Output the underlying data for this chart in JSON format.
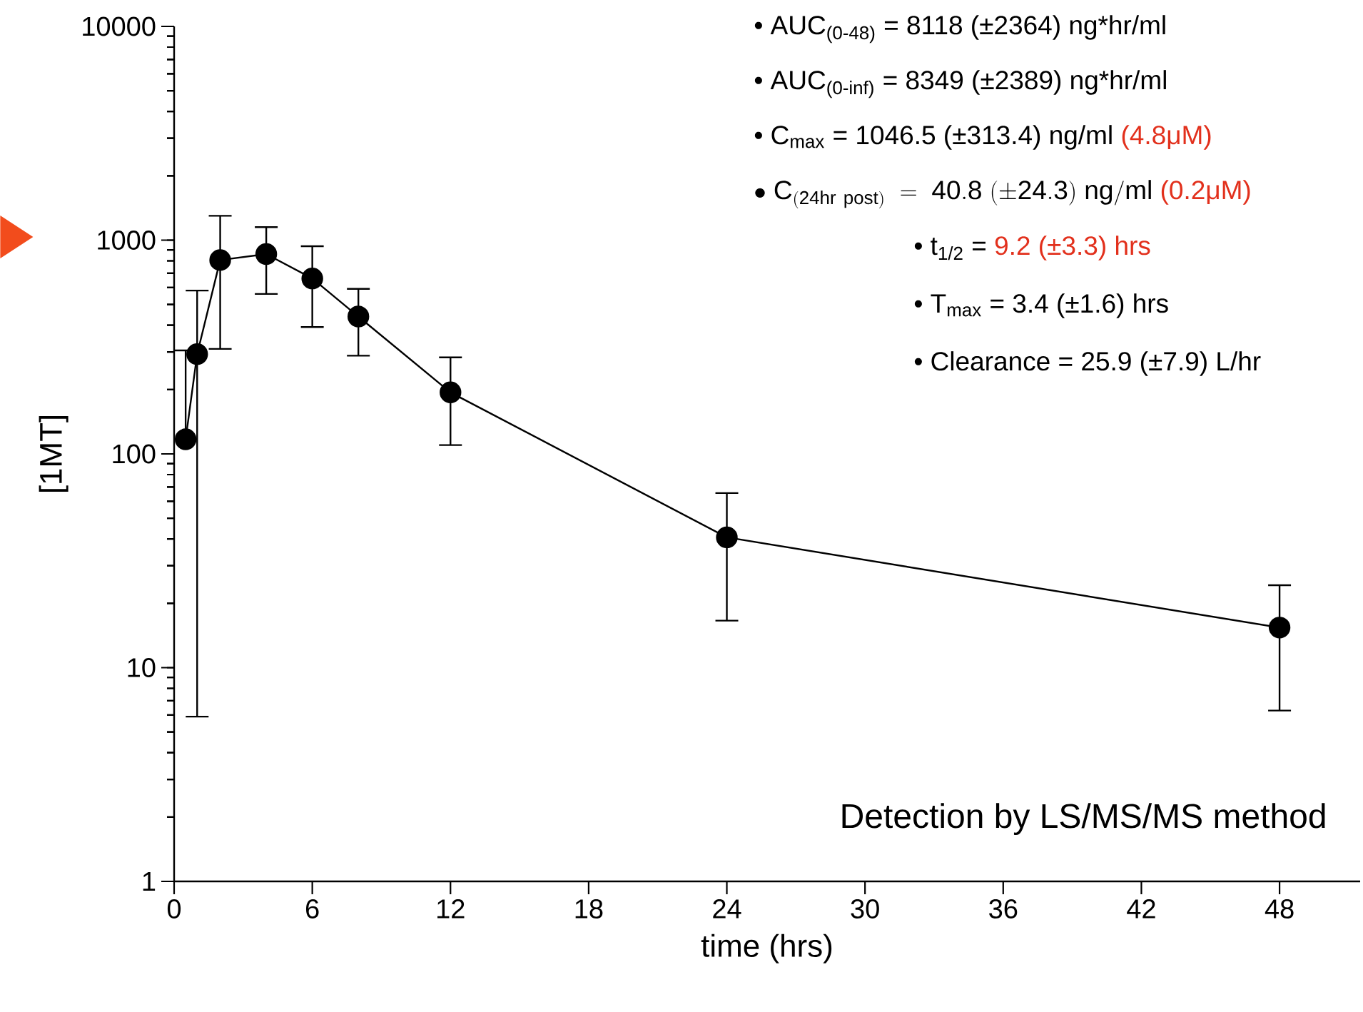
{
  "chart_data": {
    "type": "line",
    "color": "#000000",
    "marker": "circle",
    "line_style": "solid",
    "log": "y",
    "x": [
      0.5,
      1,
      2,
      4,
      6,
      8,
      12,
      24,
      48
    ],
    "values": [
      117,
      293,
      807,
      861,
      662,
      439,
      194,
      40.7,
      15.4
    ],
    "errors": [
      [
        117,
        305
      ],
      [
        5.9,
        581
      ],
      [
        310,
        1300
      ],
      [
        560,
        1150
      ],
      [
        392,
        937
      ],
      [
        288,
        592
      ],
      [
        110,
        283
      ],
      [
        16.6,
        65.6
      ],
      [
        6.3,
        24.3
      ]
    ],
    "xlim": [
      0,
      51.5
    ],
    "ylim": [
      1,
      10000
    ],
    "xticks": [
      0,
      6,
      12,
      18,
      24,
      30,
      36,
      42,
      48
    ],
    "yticks": [
      1,
      10,
      100,
      1000,
      10000
    ],
    "xlabel": "time (hrs)",
    "ylabel": "[1MT]",
    "annotations": [
      "• AUC$_{(0-48)}$ = 8118 (±2364) ng*hr/ml",
      "• AUC$_{(0-inf)}$ = 8349 (±2389) ng*hr/ml",
      "• C$_{max}$ = 1046.5 (±313.4) ng/ml",
      "(4.8μM)",
      "\\mathrm{\\bullet\\ C_{(24hr\\ post)}\\ =\\ 40.8\\ (\\pm 24.3)\\ ng/ml}",
      "(0.2μM)",
      "• t$_{1/2}$ =",
      "9.2 (±3.3) hrs",
      "• T$_{max}$ = 3.4 (±1.6) hrs",
      "• Clearance = 25.9 (±7.9) L/hr",
      "Detection by LS/MS/MS method"
    ]
  }
}
